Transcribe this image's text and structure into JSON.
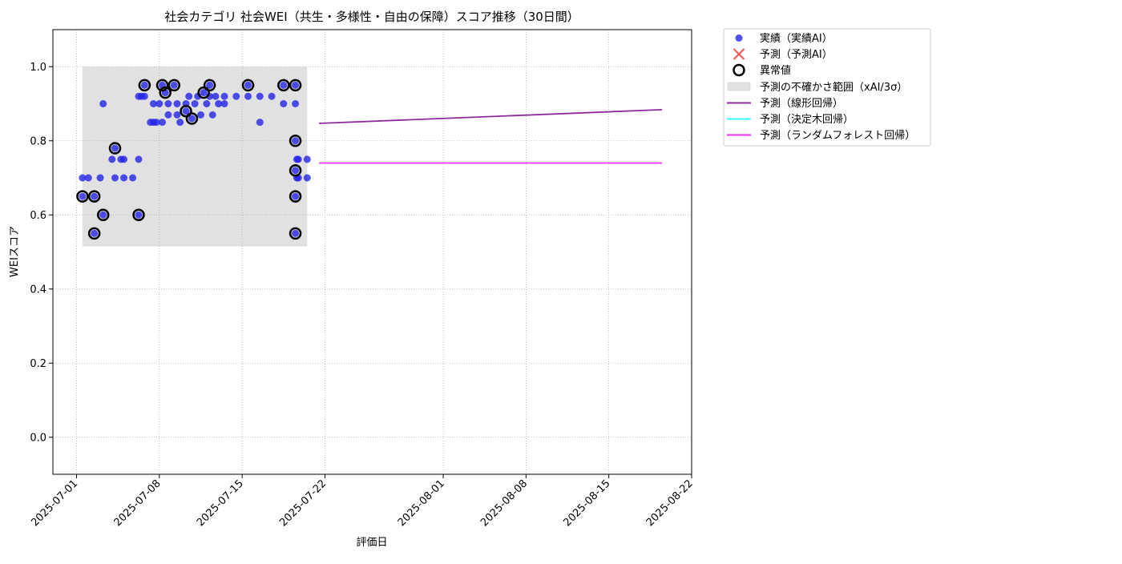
{
  "chart_data": {
    "type": "scatter",
    "title": "社会カテゴリ 社会WEI（共生・多様性・自由の保障）スコア推移（30日間）",
    "xlabel": "評価日",
    "ylabel": "WEIスコア",
    "x_type": "date",
    "xlim": [
      "2025-06-29",
      "2025-08-22"
    ],
    "ylim": [
      -0.1,
      1.1
    ],
    "x_ticks": [
      "2025-07-01",
      "2025-07-08",
      "2025-07-15",
      "2025-07-22",
      "2025-08-01",
      "2025-08-08",
      "2025-08-15",
      "2025-08-22"
    ],
    "y_ticks": [
      0.0,
      0.2,
      0.4,
      0.6,
      0.8,
      1.0
    ],
    "y_tick_labels": [
      "0.0",
      "0.2",
      "0.4",
      "0.6",
      "0.8",
      "1.0"
    ],
    "grid": true,
    "legend_position": "outside-top-right",
    "colors": {
      "actual": "#2323e6",
      "predicted_ai": "#ff3333",
      "anomaly": "#000000",
      "uncertainty": "#d9d9d9",
      "linear": "#8e2c9c",
      "tree": "#33ffff",
      "forest": "#ee2cee"
    },
    "legend": {
      "actual": "実績（実績AI）",
      "predicted_ai": "予測（予測AI）",
      "anomaly": "異常値",
      "uncertainty": "予測の不確かさ範囲（xAI/3σ）",
      "linear": "予測（線形回帰）",
      "tree": "予測（決定木回帰）",
      "forest": "予測（ランダムフォレスト回帰）"
    },
    "uncertainty_band": {
      "x": [
        "2025-07-01 12:00",
        "2025-07-20 12:00"
      ],
      "y": [
        0.515,
        1.0
      ]
    },
    "series": [
      {
        "name": "実績（実績AI）",
        "points": [
          [
            "2025-07-01 12:00",
            0.65
          ],
          [
            "2025-07-01 12:00",
            0.7
          ],
          [
            "2025-07-02 00:00",
            0.7
          ],
          [
            "2025-07-02 12:00",
            0.55
          ],
          [
            "2025-07-02 12:00",
            0.65
          ],
          [
            "2025-07-03 00:00",
            0.7
          ],
          [
            "2025-07-03 06:00",
            0.6
          ],
          [
            "2025-07-03 06:00",
            0.9
          ],
          [
            "2025-07-04 00:00",
            0.75
          ],
          [
            "2025-07-04 06:00",
            0.78
          ],
          [
            "2025-07-04 06:00",
            0.7
          ],
          [
            "2025-07-04 18:00",
            0.75
          ],
          [
            "2025-07-05 00:00",
            0.75
          ],
          [
            "2025-07-05 00:00",
            0.7
          ],
          [
            "2025-07-05 18:00",
            0.7
          ],
          [
            "2025-07-06 06:00",
            0.75
          ],
          [
            "2025-07-06 06:00",
            0.6
          ],
          [
            "2025-07-06 06:00",
            0.92
          ],
          [
            "2025-07-06 12:00",
            0.92
          ],
          [
            "2025-07-06 18:00",
            0.95
          ],
          [
            "2025-07-06 18:00",
            0.92
          ],
          [
            "2025-07-07 06:00",
            0.85
          ],
          [
            "2025-07-07 12:00",
            0.85
          ],
          [
            "2025-07-07 12:00",
            0.9
          ],
          [
            "2025-07-07 18:00",
            0.85
          ],
          [
            "2025-07-08 00:00",
            0.9
          ],
          [
            "2025-07-08 06:00",
            0.95
          ],
          [
            "2025-07-08 06:00",
            0.85
          ],
          [
            "2025-07-08 12:00",
            0.93
          ],
          [
            "2025-07-08 18:00",
            0.87
          ],
          [
            "2025-07-08 18:00",
            0.9
          ],
          [
            "2025-07-09 06:00",
            0.95
          ],
          [
            "2025-07-09 12:00",
            0.9
          ],
          [
            "2025-07-09 12:00",
            0.87
          ],
          [
            "2025-07-09 18:00",
            0.85
          ],
          [
            "2025-07-10 06:00",
            0.88
          ],
          [
            "2025-07-10 06:00",
            0.9
          ],
          [
            "2025-07-10 12:00",
            0.92
          ],
          [
            "2025-07-10 18:00",
            0.86
          ],
          [
            "2025-07-11 00:00",
            0.9
          ],
          [
            "2025-07-11 06:00",
            0.92
          ],
          [
            "2025-07-11 12:00",
            0.87
          ],
          [
            "2025-07-11 18:00",
            0.93
          ],
          [
            "2025-07-12 00:00",
            0.9
          ],
          [
            "2025-07-12 06:00",
            0.95
          ],
          [
            "2025-07-12 06:00",
            0.92
          ],
          [
            "2025-07-12 12:00",
            0.87
          ],
          [
            "2025-07-12 18:00",
            0.92
          ],
          [
            "2025-07-13 00:00",
            0.9
          ],
          [
            "2025-07-13 12:00",
            0.92
          ],
          [
            "2025-07-13 12:00",
            0.9
          ],
          [
            "2025-07-14 12:00",
            0.92
          ],
          [
            "2025-07-15 12:00",
            0.95
          ],
          [
            "2025-07-15 12:00",
            0.92
          ],
          [
            "2025-07-16 12:00",
            0.92
          ],
          [
            "2025-07-16 12:00",
            0.85
          ],
          [
            "2025-07-17 12:00",
            0.92
          ],
          [
            "2025-07-18 12:00",
            0.95
          ],
          [
            "2025-07-18 12:00",
            0.9
          ],
          [
            "2025-07-19 12:00",
            0.95
          ],
          [
            "2025-07-19 12:00",
            0.9
          ],
          [
            "2025-07-19 12:00",
            0.8
          ],
          [
            "2025-07-19 12:00",
            0.72
          ],
          [
            "2025-07-19 12:00",
            0.65
          ],
          [
            "2025-07-19 12:00",
            0.55
          ],
          [
            "2025-07-19 15:00",
            0.75
          ],
          [
            "2025-07-19 15:00",
            0.7
          ],
          [
            "2025-07-19 18:00",
            0.75
          ],
          [
            "2025-07-19 18:00",
            0.7
          ],
          [
            "2025-07-20 12:00",
            0.75
          ],
          [
            "2025-07-20 12:00",
            0.7
          ]
        ]
      },
      {
        "name": "異常値",
        "points": [
          [
            "2025-07-01 12:00",
            0.65
          ],
          [
            "2025-07-02 12:00",
            0.55
          ],
          [
            "2025-07-02 12:00",
            0.65
          ],
          [
            "2025-07-03 06:00",
            0.6
          ],
          [
            "2025-07-04 06:00",
            0.78
          ],
          [
            "2025-07-06 06:00",
            0.6
          ],
          [
            "2025-07-06 18:00",
            0.95
          ],
          [
            "2025-07-08 06:00",
            0.95
          ],
          [
            "2025-07-08 12:00",
            0.93
          ],
          [
            "2025-07-09 06:00",
            0.95
          ],
          [
            "2025-07-10 06:00",
            0.88
          ],
          [
            "2025-07-10 18:00",
            0.86
          ],
          [
            "2025-07-11 18:00",
            0.93
          ],
          [
            "2025-07-12 06:00",
            0.95
          ],
          [
            "2025-07-15 12:00",
            0.95
          ],
          [
            "2025-07-18 12:00",
            0.95
          ],
          [
            "2025-07-19 12:00",
            0.95
          ],
          [
            "2025-07-19 12:00",
            0.8
          ],
          [
            "2025-07-19 12:00",
            0.72
          ],
          [
            "2025-07-19 12:00",
            0.65
          ],
          [
            "2025-07-19 12:00",
            0.55
          ]
        ]
      },
      {
        "name": "予測（線形回帰）",
        "points": [
          [
            "2025-07-21 12:00",
            0.847
          ],
          [
            "2025-08-19 12:00",
            0.884
          ]
        ]
      },
      {
        "name": "予測（ランダムフォレスト回帰）",
        "points": [
          [
            "2025-07-21 12:00",
            0.74
          ],
          [
            "2025-08-19 12:00",
            0.74
          ]
        ]
      }
    ]
  }
}
